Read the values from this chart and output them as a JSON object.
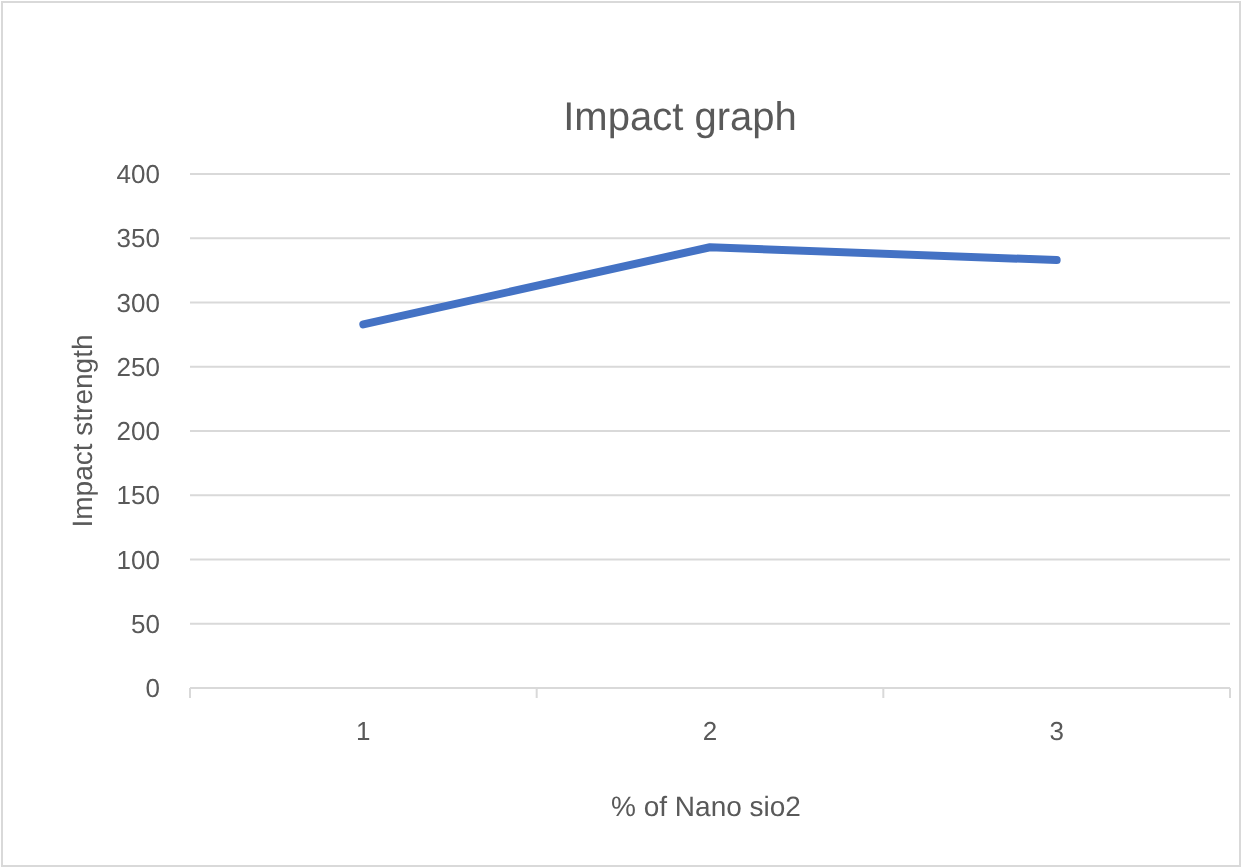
{
  "chart_data": {
    "type": "line",
    "title": "Impact graph",
    "xlabel": "% of Nano sio2",
    "ylabel": "Impact  strength",
    "categories": [
      "1",
      "2",
      "3"
    ],
    "series": [
      {
        "color": "#4472c4",
        "values": [
          283,
          343,
          333
        ]
      }
    ],
    "ylim": [
      0,
      400
    ],
    "yticks": [
      0,
      50,
      100,
      150,
      200,
      250,
      300,
      350,
      400
    ],
    "grid": "y",
    "marker": "none",
    "line_style": "solid"
  }
}
